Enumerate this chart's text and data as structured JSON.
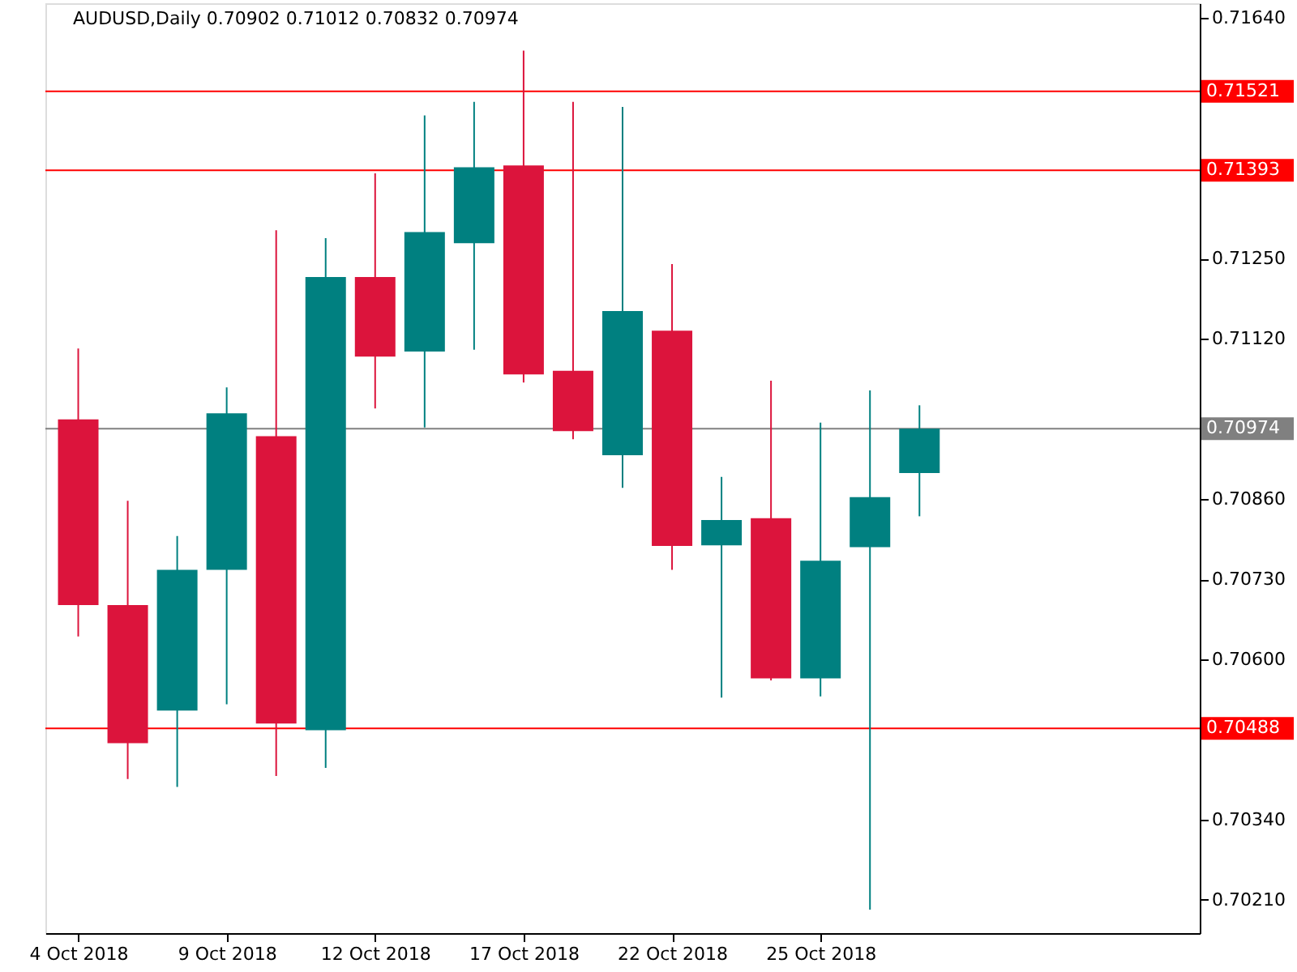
{
  "chart_data": {
    "type": "candlestick",
    "title": "AUDUSD,Daily  0.70902 0.71012 0.70832 0.70974",
    "categories": [
      "4 Oct 2018",
      null,
      null,
      "9 Oct 2018",
      null,
      null,
      "12 Oct 2018",
      null,
      null,
      "17 Oct 2018",
      null,
      null,
      "22 Oct 2018",
      null,
      null,
      "25 Oct 2018",
      null,
      null,
      null,
      null,
      null,
      null,
      null
    ],
    "ohlc": [
      [
        0.70989,
        0.71104,
        0.70637,
        0.70688
      ],
      [
        0.70688,
        0.70857,
        0.70406,
        0.70464
      ],
      [
        0.70517,
        0.708,
        0.70393,
        0.70745
      ],
      [
        0.70745,
        0.71041,
        0.70527,
        0.70999
      ],
      [
        0.70962,
        0.71296,
        0.70411,
        0.70496
      ],
      [
        0.70485,
        0.71283,
        0.70424,
        0.7122
      ],
      [
        0.7122,
        0.71388,
        0.71007,
        0.71091
      ],
      [
        0.71099,
        0.71482,
        0.70976,
        0.71293
      ],
      [
        0.71275,
        0.71504,
        0.71102,
        0.71398
      ],
      [
        0.71401,
        0.71587,
        0.71049,
        0.71062
      ],
      [
        0.71068,
        0.71504,
        0.70957,
        0.7097
      ],
      [
        0.70931,
        0.71496,
        0.70878,
        0.71165
      ],
      [
        0.71133,
        0.71241,
        0.70745,
        0.70784
      ],
      [
        0.70785,
        0.70896,
        0.70538,
        0.70826
      ],
      [
        0.70829,
        0.71052,
        0.70566,
        0.70569
      ],
      [
        0.70569,
        0.70984,
        0.7054,
        0.7076
      ],
      [
        0.70782,
        0.71036,
        0.70194,
        0.70863
      ],
      [
        0.70902,
        0.71012,
        0.70832,
        0.70974
      ],
      null,
      null,
      null,
      null,
      null
    ],
    "colors": [
      "#dc143c",
      "#dc143c",
      "#008080",
      "#008080",
      "#dc143c",
      "#008080",
      "#dc143c",
      "#008080",
      "#008080",
      "#dc143c",
      "#dc143c",
      "#008080",
      "#dc143c",
      "#008080",
      "#dc143c",
      "#008080",
      "#008080",
      "#008080",
      null,
      null,
      null,
      null,
      null
    ],
    "ylim": [
      0.70156,
      0.71664
    ],
    "yticks": [
      {
        "value": 0.7164,
        "label": "0.71640"
      },
      {
        "value": 0.7125,
        "label": "0.71250"
      },
      {
        "value": 0.7112,
        "label": "0.71120"
      },
      {
        "value": 0.7086,
        "label": "0.70860"
      },
      {
        "value": 0.7073,
        "label": "0.70730"
      },
      {
        "value": 0.706,
        "label": "0.70600"
      },
      {
        "value": 0.7034,
        "label": "0.70340"
      },
      {
        "value": 0.7021,
        "label": "0.70210"
      }
    ],
    "ref_lines": [
      {
        "axis": "y",
        "value": 0.71521,
        "label": "0.71521",
        "color": "#ff0000"
      },
      {
        "axis": "y",
        "value": 0.71393,
        "label": "0.71393",
        "color": "#ff0000"
      },
      {
        "axis": "y",
        "value": 0.70488,
        "label": "0.70488",
        "color": "#ff0000"
      },
      {
        "axis": "y",
        "value": 0.70974,
        "label": "0.70974",
        "color": "#808080"
      }
    ],
    "grid": false
  }
}
